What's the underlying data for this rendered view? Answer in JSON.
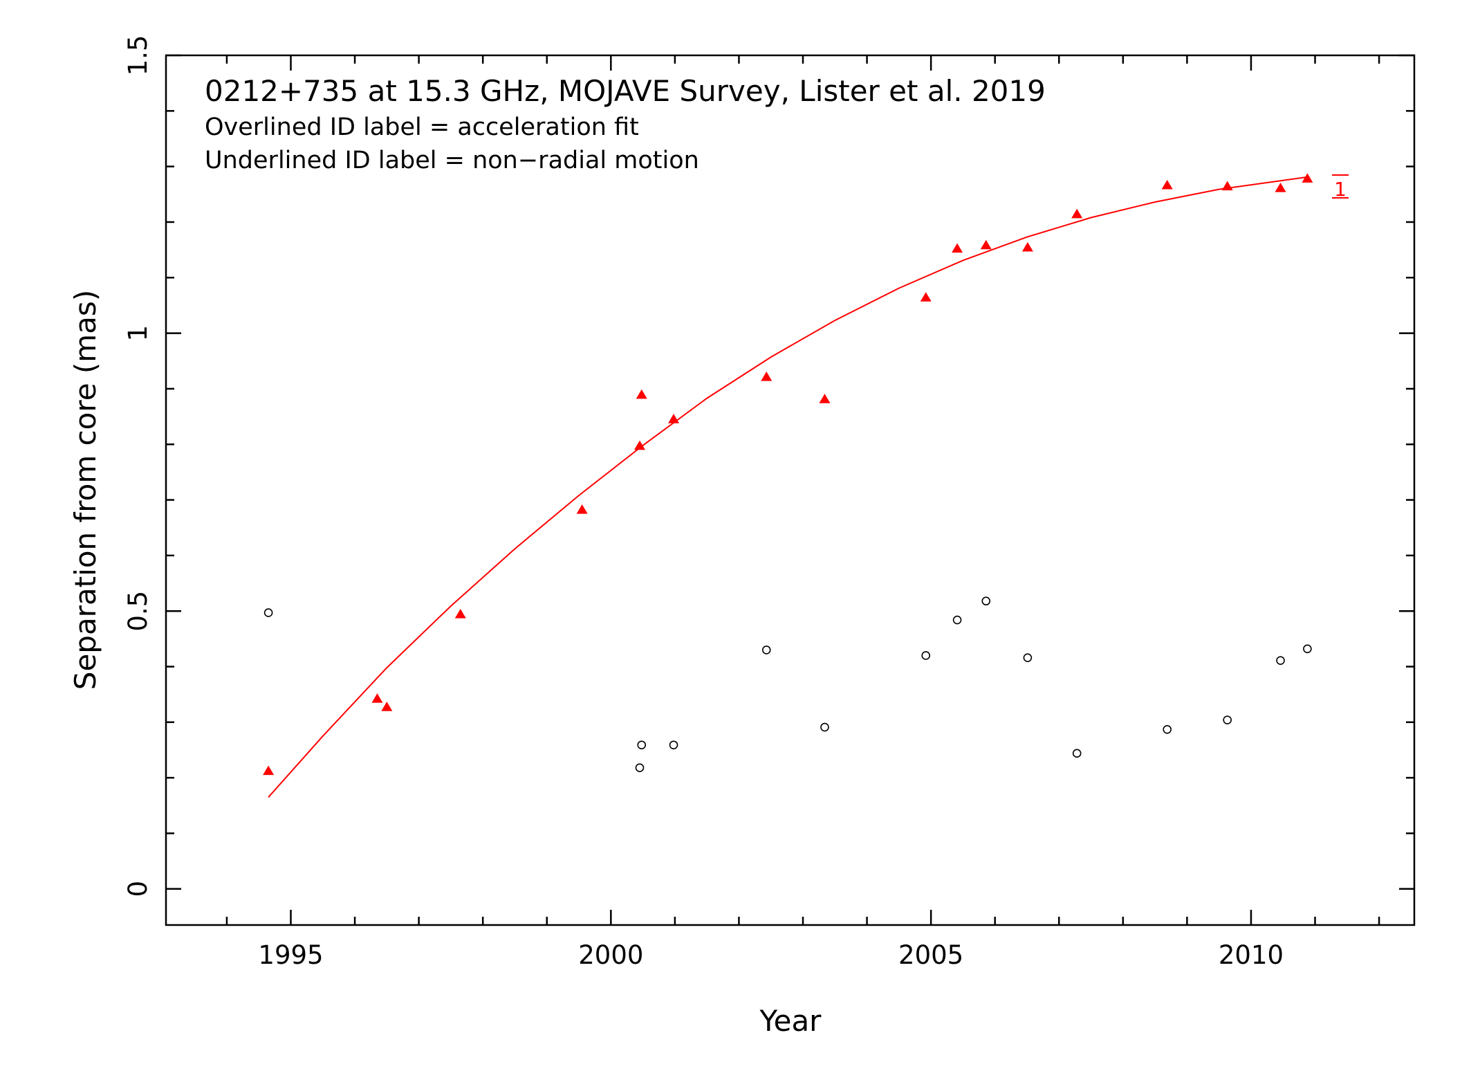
{
  "chart_data": {
    "type": "scatter",
    "title": "0212+735 at 15.3 GHz, MOJAVE Survey, Lister et al. 2019",
    "annotations": [
      "Overlined ID label = acceleration fit",
      "Underlined ID label = non−radial motion"
    ],
    "xlabel": "Year",
    "ylabel": "Separation from core (mas)",
    "xlim": [
      1993.05,
      2012.55
    ],
    "ylim": [
      -0.065,
      1.5
    ],
    "x_ticks": [
      1995,
      2000,
      2005,
      2010
    ],
    "x_tick_labels": [
      "1995",
      "2000",
      "2005",
      "2010"
    ],
    "y_ticks": [
      0,
      0.5,
      1,
      1.5
    ],
    "y_tick_labels": [
      "0",
      "0.5",
      "1",
      "1.5"
    ],
    "grid": false,
    "series": [
      {
        "id_label": "1",
        "marker": "filled-triangle",
        "color": "#ff0000",
        "x": [
          1994.65,
          1996.35,
          1996.5,
          1997.65,
          1999.55,
          2000.45,
          2000.48,
          2000.98,
          2002.43,
          2003.34,
          2004.92,
          2005.41,
          2005.86,
          2006.51,
          2007.28,
          2008.69,
          2009.63,
          2010.46,
          2010.88
        ],
        "y": [
          0.212,
          0.342,
          0.327,
          0.494,
          0.682,
          0.797,
          0.889,
          0.845,
          0.921,
          0.881,
          1.064,
          1.152,
          1.158,
          1.154,
          1.214,
          1.266,
          1.264,
          1.261,
          1.278
        ]
      },
      {
        "marker": "open-circle",
        "color": "#000000",
        "x": [
          1994.65,
          2000.45,
          2000.48,
          2000.98,
          2002.43,
          2003.34,
          2004.92,
          2005.41,
          2005.86,
          2006.51,
          2007.28,
          2008.69,
          2009.63,
          2010.46,
          2010.88
        ],
        "y": [
          0.497,
          0.218,
          0.259,
          0.259,
          0.43,
          0.291,
          0.42,
          0.484,
          0.518,
          0.416,
          0.244,
          0.287,
          0.304,
          0.411,
          0.432
        ]
      }
    ],
    "fit_curve": {
      "color": "#ff0000",
      "x": [
        1994.65,
        1995.5,
        1996.5,
        1997.5,
        1998.5,
        1999.5,
        2000.5,
        2001.5,
        2002.5,
        2003.5,
        2004.5,
        2005.5,
        2006.5,
        2007.5,
        2008.5,
        2009.5,
        2010.5,
        2010.88
      ],
      "y": [
        0.165,
        0.275,
        0.398,
        0.509,
        0.612,
        0.708,
        0.798,
        0.883,
        0.957,
        1.023,
        1.081,
        1.131,
        1.173,
        1.208,
        1.236,
        1.259,
        1.275,
        1.281
      ]
    }
  }
}
